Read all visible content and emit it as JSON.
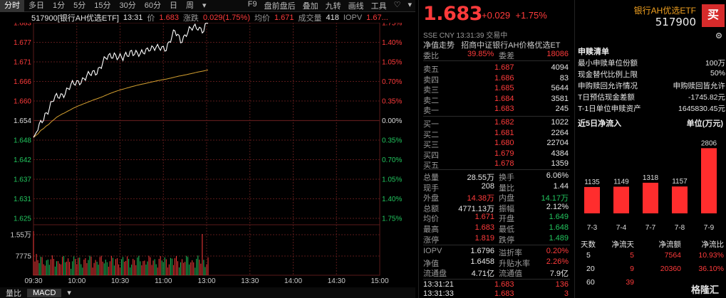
{
  "toolbar": {
    "tabs": [
      "分时",
      "多日",
      "1分",
      "5分",
      "15分",
      "30分",
      "60分",
      "日",
      "周",
      "▾"
    ],
    "right": [
      "F9",
      "盘前盘后",
      "叠加",
      "九转",
      "画线",
      "工具",
      "♡",
      "▾"
    ]
  },
  "infobar": {
    "code_name": "517900[银行AH优选ETF]",
    "time": "13:31",
    "price_label": "价",
    "price": "1.683",
    "chg_label": "涨跌",
    "chg": "0.029(1.75%)",
    "avg_label": "均价",
    "avg": "1.671",
    "vol_label": "成交量",
    "vol": "418",
    "iopv_label": "IOPV",
    "iopv": "1.67..."
  },
  "chart": {
    "left_ticks": [
      "1.683",
      "1.677",
      "1.671",
      "1.666",
      "1.660",
      "1.654",
      "1.648",
      "1.642",
      "1.637",
      "1.631",
      "1.625"
    ],
    "right_ticks": [
      "1.75%",
      "1.40%",
      "1.05%",
      "0.70%",
      "0.35%",
      "0.00%",
      "0.35%",
      "0.70%",
      "1.05%",
      "1.40%",
      "1.75%"
    ],
    "vol_ticks": [
      "1.55万",
      "7775"
    ],
    "time_ticks": [
      "09:30",
      "10:00",
      "10:30",
      "11:00",
      "13:00",
      "13:30",
      "14:00",
      "14:30",
      "15:00"
    ],
    "colors": {
      "price": "#ffffff",
      "avg": "#d4a030",
      "up": "#ff3b3b",
      "down": "#22c55e",
      "grid": "#5a1a1a"
    }
  },
  "bottombar": {
    "tabs": [
      "量比",
      "MACD",
      "▾"
    ]
  },
  "quote": {
    "price": "1.683",
    "change": "+0.029",
    "change_pct": "+1.75%",
    "meta": "SSE  CNY  13:31:39  交易中",
    "nav_label": "净值走势",
    "nav_name": "招商中证银行AH价格优选ET",
    "weibi_label": "委比",
    "weibi": "39.85%",
    "weicha_label": "委差",
    "weicha": "18086",
    "asks": [
      {
        "label": "卖五",
        "price": "1.687",
        "vol": "4094"
      },
      {
        "label": "卖四",
        "price": "1.686",
        "vol": "83"
      },
      {
        "label": "卖三",
        "price": "1.685",
        "vol": "5644"
      },
      {
        "label": "卖二",
        "price": "1.684",
        "vol": "3581"
      },
      {
        "label": "卖一",
        "price": "1.683",
        "vol": "245"
      }
    ],
    "bids": [
      {
        "label": "买一",
        "price": "1.682",
        "vol": "1022"
      },
      {
        "label": "买二",
        "price": "1.681",
        "vol": "2264"
      },
      {
        "label": "买三",
        "price": "1.680",
        "vol": "22704"
      },
      {
        "label": "买四",
        "price": "1.679",
        "vol": "4384"
      },
      {
        "label": "买五",
        "price": "1.678",
        "vol": "1359"
      }
    ],
    "stats": [
      {
        "l1": "总量",
        "v1": "28.55万",
        "c1": "white",
        "l2": "换手",
        "v2": "6.06%",
        "c2": "white"
      },
      {
        "l1": "现手",
        "v1": "208",
        "c1": "white",
        "l2": "量比",
        "v2": "1.44",
        "c2": "white"
      },
      {
        "l1": "外盘",
        "v1": "14.38万",
        "c1": "red",
        "l2": "内盘",
        "v2": "14.17万",
        "c2": "green"
      },
      {
        "l1": "总额",
        "v1": "4771.13万",
        "c1": "white",
        "l2": "振幅",
        "v2": "2.12%",
        "c2": "white"
      },
      {
        "l1": "均价",
        "v1": "1.671",
        "c1": "red",
        "l2": "开盘",
        "v2": "1.649",
        "c2": "green"
      },
      {
        "l1": "最高",
        "v1": "1.683",
        "c1": "red",
        "l2": "最低",
        "v2": "1.648",
        "c2": "green"
      },
      {
        "l1": "涨停",
        "v1": "1.819",
        "c1": "red",
        "l2": "跌停",
        "v2": "1.489",
        "c2": "green"
      }
    ],
    "stats2": [
      {
        "l1": "IOPV",
        "v1": "1.6796",
        "c1": "white",
        "l2": "溢折率",
        "v2": "0.20%",
        "c2": "red"
      },
      {
        "l1": "净值",
        "v1": "1.6458",
        "c1": "white",
        "l2": "升贴水率",
        "v2": "2.26%",
        "c2": "red"
      },
      {
        "l1": "流通盘",
        "v1": "4.71亿",
        "c1": "white",
        "l2": "流通值",
        "v2": "7.9亿",
        "c2": "white"
      }
    ],
    "ticks": [
      {
        "time": "13:31:21",
        "price": "1.683",
        "vol": "136"
      },
      {
        "time": "13:31:33",
        "price": "1.683",
        "vol": "3"
      }
    ]
  },
  "info": {
    "fund_name": "银行AH优选ETF",
    "fund_code": "517900",
    "buy_label": "买",
    "section1_title": "申赎清单",
    "section1": [
      {
        "k": "最小申赎单位份额",
        "v": "100万"
      },
      {
        "k": "现金替代比例上限",
        "v": "50%"
      },
      {
        "k": "申购赎回允许情况",
        "v": "申购赎回皆允许"
      },
      {
        "k": "T日预估现金差额",
        "v": "-1745.82元"
      },
      {
        "k": "T-1日单位申赎资产",
        "v": "1645830.45元"
      }
    ],
    "section2_title": "近5日净流入",
    "section2_unit": "单位(万元)",
    "flow_bars": [
      {
        "date": "7-3",
        "value": 1135
      },
      {
        "date": "7-4",
        "value": 1149
      },
      {
        "date": "7-7",
        "value": 1318
      },
      {
        "date": "7-8",
        "value": 1157
      },
      {
        "date": "7-9",
        "value": 2806
      }
    ],
    "flow_table_head": [
      "天数",
      "净流天",
      "净流额",
      "净流比"
    ],
    "flow_table": [
      {
        "days": "5",
        "net_days": "5",
        "amount": "7564",
        "ratio": "10.93%"
      },
      {
        "days": "20",
        "net_days": "9",
        "amount": "20360",
        "ratio": "36.10%"
      },
      {
        "days": "60",
        "net_days": "39",
        "amount": "",
        "ratio": ""
      }
    ],
    "watermark": "格隆汇"
  }
}
